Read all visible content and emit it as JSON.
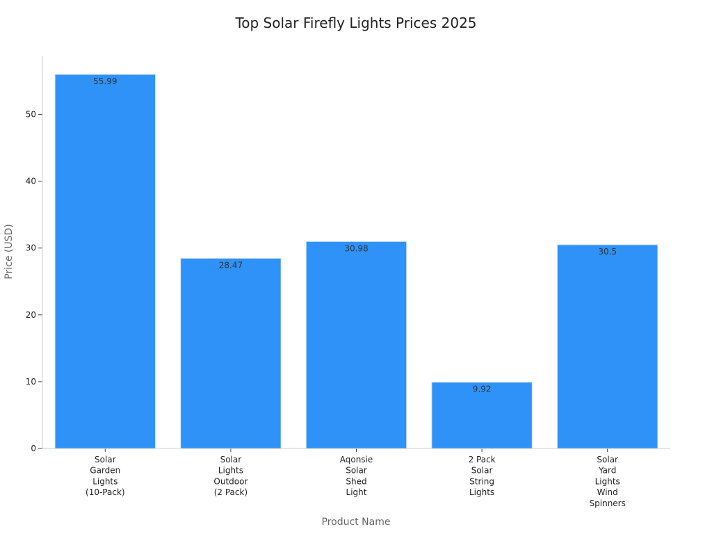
{
  "chart_data": {
    "type": "bar",
    "title": "Top Solar Firefly Lights Prices 2025",
    "xlabel": "Product Name",
    "ylabel": "Price (USD)",
    "categories": [
      [
        "Solar",
        "Garden",
        "Lights",
        "(10-Pack)"
      ],
      [
        "Solar",
        "Lights",
        "Outdoor",
        "(2 Pack)"
      ],
      [
        "Aqonsie",
        "Solar",
        "Shed",
        "Light"
      ],
      [
        "2 Pack",
        "Solar",
        "String",
        "Lights"
      ],
      [
        "Solar",
        "Yard",
        "Lights",
        "Wind",
        "Spinners"
      ]
    ],
    "values": [
      55.99,
      28.47,
      30.98,
      9.92,
      30.5
    ],
    "value_labels": [
      "55.99",
      "28.47",
      "30.98",
      "9.92",
      "30.5"
    ],
    "yticks": [
      0,
      10,
      20,
      30,
      40,
      50
    ],
    "ylim": [
      0,
      58.8
    ],
    "bar_color": "#2f92f8",
    "grid": false,
    "legend": "none"
  }
}
